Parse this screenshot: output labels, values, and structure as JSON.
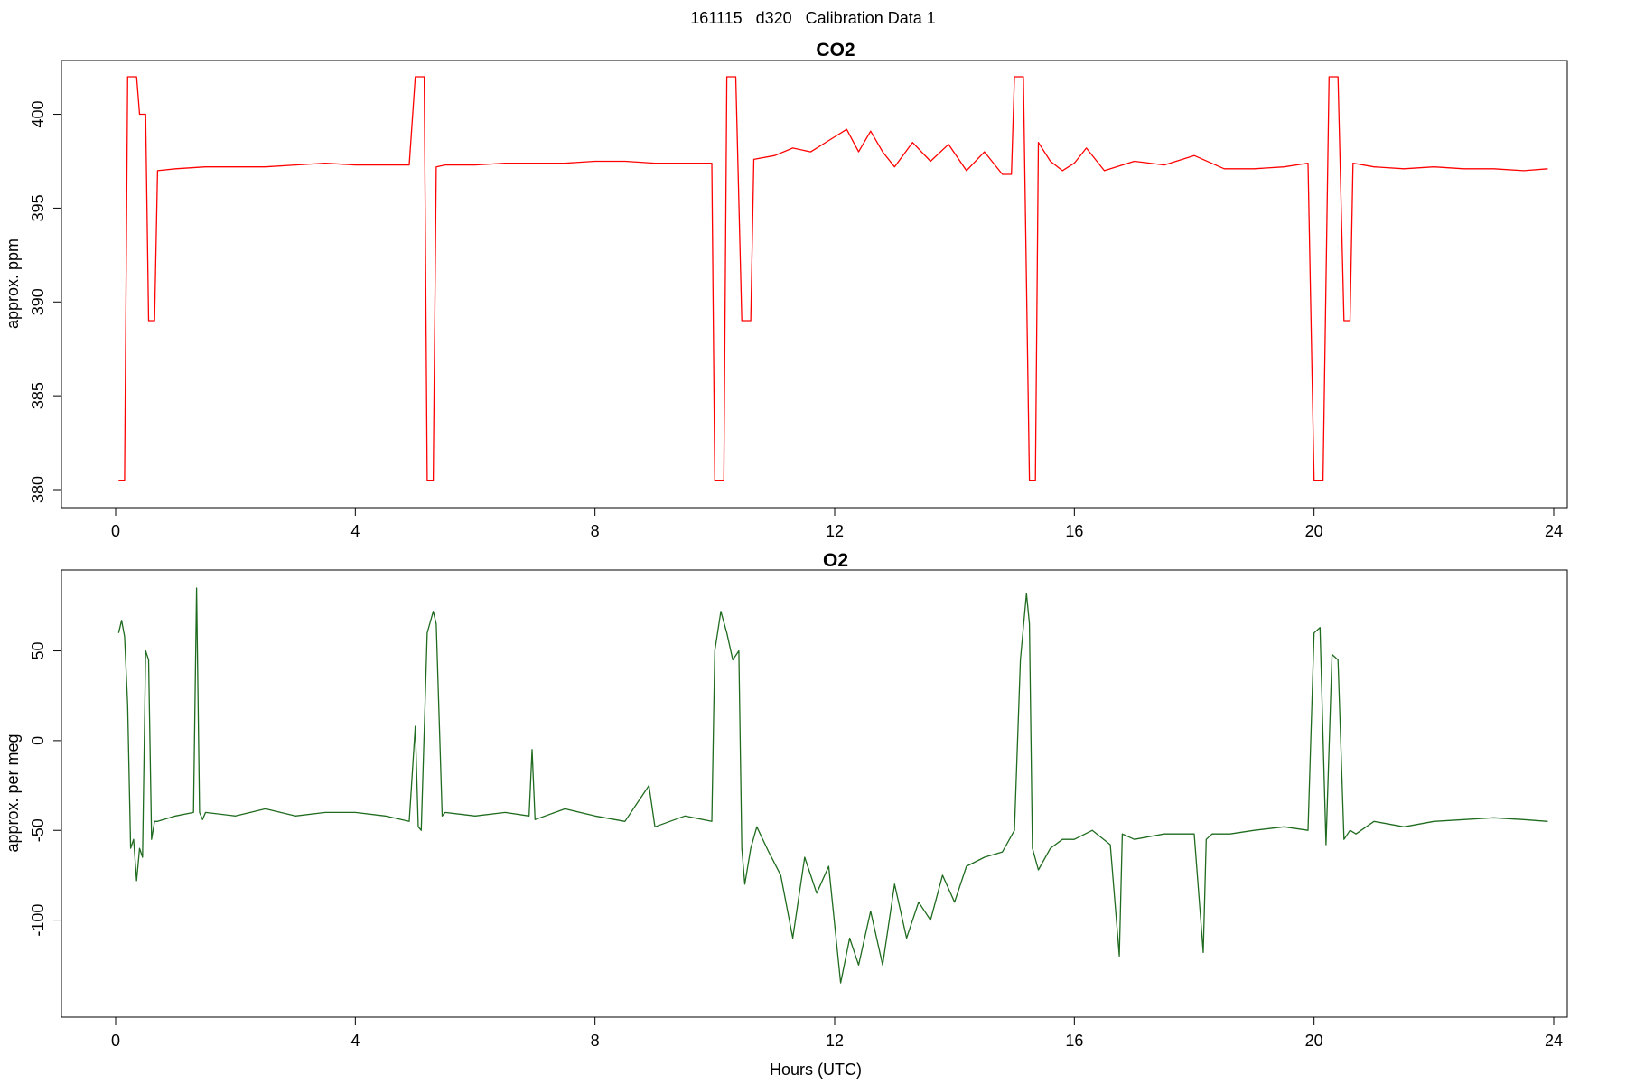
{
  "figure": {
    "title": "161115   d320   Calibration Data 1",
    "xlabel": "Hours (UTC)"
  },
  "chart_data": [
    {
      "type": "line",
      "title": "CO2",
      "xlabel": "",
      "ylabel": "approx. ppm",
      "xlim": [
        0,
        24
      ],
      "ylim": [
        380,
        402
      ],
      "x_ticks": [
        0,
        4,
        8,
        12,
        16,
        20,
        24
      ],
      "y_ticks": [
        380,
        385,
        390,
        395,
        400
      ],
      "grid": false,
      "series": [
        {
          "color": "#ff0000",
          "x": [
            0.05,
            0.15,
            0.2,
            0.25,
            0.35,
            0.4,
            0.5,
            0.55,
            0.6,
            0.65,
            0.7,
            1.0,
            1.5,
            2.0,
            2.5,
            3.0,
            3.5,
            4.0,
            4.5,
            4.9,
            5.0,
            5.05,
            5.15,
            5.2,
            5.3,
            5.35,
            5.5,
            6.0,
            6.5,
            7.0,
            7.5,
            8.0,
            8.5,
            9.0,
            9.5,
            9.95,
            10.0,
            10.05,
            10.15,
            10.2,
            10.3,
            10.35,
            10.45,
            10.5,
            10.6,
            10.65,
            11.0,
            11.3,
            11.6,
            12.0,
            12.2,
            12.4,
            12.6,
            12.8,
            13.0,
            13.3,
            13.6,
            13.9,
            14.2,
            14.5,
            14.8,
            14.95,
            15.0,
            15.05,
            15.15,
            15.25,
            15.35,
            15.4,
            15.6,
            15.8,
            16.0,
            16.2,
            16.5,
            17.0,
            17.5,
            18.0,
            18.5,
            19.0,
            19.5,
            19.9,
            20.0,
            20.05,
            20.15,
            20.25,
            20.35,
            20.4,
            20.5,
            20.55,
            20.6,
            20.65,
            21.0,
            21.5,
            22.0,
            22.5,
            23.0,
            23.5,
            23.9
          ],
          "y": [
            380.5,
            380.5,
            402,
            402,
            402,
            400,
            400,
            389,
            389,
            389,
            397,
            397.1,
            397.2,
            397.2,
            397.2,
            397.3,
            397.4,
            397.3,
            397.3,
            397.3,
            402,
            402,
            402,
            380.5,
            380.5,
            397.2,
            397.3,
            397.3,
            397.4,
            397.4,
            397.4,
            397.5,
            397.5,
            397.4,
            397.4,
            397.4,
            380.5,
            380.5,
            380.5,
            402,
            402,
            402,
            389,
            389,
            389,
            397.6,
            397.8,
            398.2,
            398.0,
            398.8,
            399.2,
            398.0,
            399.1,
            398.0,
            397.2,
            398.5,
            397.5,
            398.4,
            397.0,
            398.0,
            396.8,
            396.8,
            402,
            402,
            402,
            380.5,
            380.5,
            398.5,
            397.5,
            397.0,
            397.4,
            398.2,
            397.0,
            397.5,
            397.3,
            397.8,
            397.1,
            397.1,
            397.2,
            397.4,
            380.5,
            380.5,
            380.5,
            402,
            402,
            402,
            389,
            389,
            389,
            397.4,
            397.2,
            397.1,
            397.2,
            397.1,
            397.1,
            397.0,
            397.1
          ]
        }
      ]
    },
    {
      "type": "line",
      "title": "O2",
      "xlabel": "Hours (UTC)",
      "ylabel": "approx. per meg",
      "xlim": [
        0,
        24
      ],
      "ylim": [
        -145,
        85
      ],
      "x_ticks": [
        0,
        4,
        8,
        12,
        16,
        20,
        24
      ],
      "y_ticks": [
        -100,
        -50,
        0,
        50
      ],
      "grid": false,
      "series": [
        {
          "color": "#1f6b1f",
          "x": [
            0.05,
            0.1,
            0.15,
            0.2,
            0.25,
            0.3,
            0.35,
            0.4,
            0.45,
            0.5,
            0.55,
            0.6,
            0.65,
            0.7,
            1.0,
            1.3,
            1.35,
            1.4,
            1.45,
            1.5,
            2.0,
            2.5,
            3.0,
            3.5,
            4.0,
            4.5,
            4.9,
            5.0,
            5.05,
            5.1,
            5.2,
            5.3,
            5.35,
            5.45,
            5.5,
            6.0,
            6.5,
            6.9,
            6.95,
            7.0,
            7.5,
            8.0,
            8.5,
            8.9,
            9.0,
            9.5,
            9.95,
            10.0,
            10.1,
            10.2,
            10.3,
            10.4,
            10.45,
            10.5,
            10.6,
            10.7,
            10.9,
            11.1,
            11.3,
            11.5,
            11.7,
            11.9,
            12.1,
            12.25,
            12.4,
            12.6,
            12.8,
            13.0,
            13.2,
            13.4,
            13.6,
            13.8,
            14.0,
            14.2,
            14.5,
            14.8,
            15.0,
            15.1,
            15.2,
            15.25,
            15.3,
            15.4,
            15.6,
            15.8,
            16.0,
            16.3,
            16.6,
            16.75,
            16.8,
            17.0,
            17.5,
            18.0,
            18.15,
            18.2,
            18.3,
            18.6,
            19.0,
            19.5,
            19.9,
            20.0,
            20.1,
            20.2,
            20.3,
            20.4,
            20.5,
            20.6,
            20.7,
            21.0,
            21.5,
            22.0,
            22.5,
            23.0,
            23.5,
            23.9
          ],
          "y": [
            60,
            67,
            58,
            20,
            -60,
            -55,
            -78,
            -60,
            -65,
            50,
            45,
            -55,
            -45,
            -45,
            -42,
            -40,
            85,
            -40,
            -44,
            -40,
            -42,
            -38,
            -42,
            -40,
            -40,
            -42,
            -45,
            8,
            -48,
            -50,
            60,
            72,
            65,
            -42,
            -40,
            -42,
            -40,
            -42,
            -5,
            -44,
            -38,
            -42,
            -45,
            -25,
            -48,
            -42,
            -45,
            50,
            72,
            60,
            45,
            50,
            -60,
            -80,
            -60,
            -48,
            -62,
            -75,
            -110,
            -65,
            -85,
            -70,
            -135,
            -110,
            -125,
            -95,
            -125,
            -80,
            -110,
            -90,
            -100,
            -75,
            -90,
            -70,
            -65,
            -62,
            -50,
            45,
            82,
            65,
            -60,
            -72,
            -60,
            -55,
            -55,
            -50,
            -58,
            -120,
            -52,
            -55,
            -52,
            -52,
            -118,
            -55,
            -52,
            -52,
            -50,
            -48,
            -50,
            60,
            63,
            -58,
            48,
            45,
            -55,
            -50,
            -52,
            -45,
            -48,
            -45,
            -44,
            -43,
            -44,
            -45
          ]
        }
      ]
    }
  ]
}
